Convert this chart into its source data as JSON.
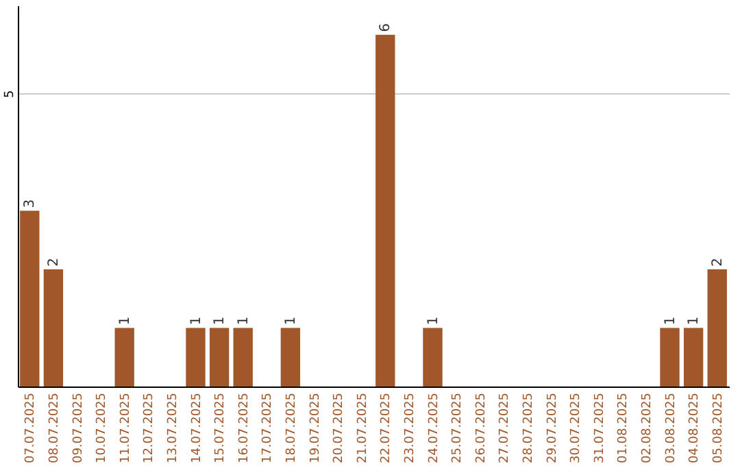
{
  "chart_data": {
    "type": "bar",
    "categories": [
      "07.07.2025",
      "08.07.2025",
      "09.07.2025",
      "10.07.2025",
      "11.07.2025",
      "12.07.2025",
      "13.07.2025",
      "14.07.2025",
      "15.07.2025",
      "16.07.2025",
      "17.07.2025",
      "18.07.2025",
      "19.07.2025",
      "20.07.2025",
      "21.07.2025",
      "22.07.2025",
      "23.07.2025",
      "24.07.2025",
      "25.07.2025",
      "26.07.2025",
      "27.07.2025",
      "28.07.2025",
      "29.07.2025",
      "30.07.2025",
      "31.07.2025",
      "01.08.2025",
      "02.08.2025",
      "03.08.2025",
      "04.08.2025",
      "05.08.2025"
    ],
    "values": [
      3,
      2,
      0,
      0,
      1,
      0,
      0,
      1,
      1,
      1,
      0,
      1,
      0,
      0,
      0,
      6,
      0,
      1,
      0,
      0,
      0,
      0,
      0,
      0,
      0,
      0,
      0,
      1,
      1,
      2
    ],
    "value_labels": [
      "3",
      "2",
      null,
      null,
      "1",
      null,
      null,
      "1",
      "1",
      "1",
      null,
      "1",
      null,
      null,
      null,
      "6",
      null,
      "1",
      null,
      null,
      null,
      null,
      null,
      null,
      null,
      null,
      null,
      "1",
      "1",
      "2"
    ],
    "color": "#a0582a",
    "ylim": [
      0,
      6.5
    ],
    "yticks": [
      5
    ],
    "grid": "y"
  }
}
